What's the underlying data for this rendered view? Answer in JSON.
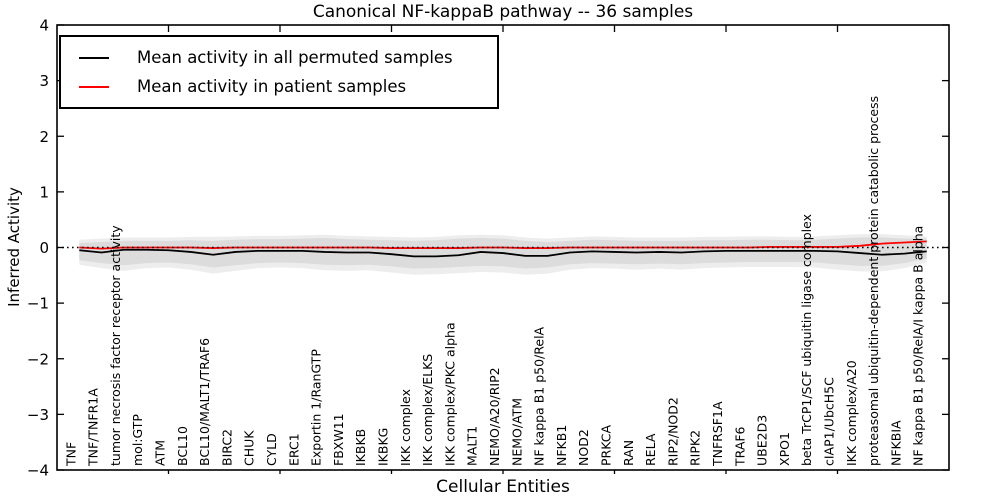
{
  "chart_data": {
    "type": "line",
    "title": "Canonical NF-kappaB pathway -- 36 samples",
    "xlabel": "Cellular Entities",
    "ylabel": "Inferred Activity",
    "ylim": [
      -4,
      4
    ],
    "xlim": [
      0,
      40
    ],
    "yticks": [
      4,
      3,
      2,
      1,
      0,
      -1,
      -2,
      -3,
      -4
    ],
    "ytick_labels": [
      "4",
      "3",
      "2",
      "1",
      "0",
      "−1",
      "−2",
      "−3",
      "−4"
    ],
    "xtick_units": [
      5,
      10,
      15,
      20,
      25,
      30,
      35
    ],
    "grid": false,
    "legend_position": "upper left",
    "categories": [
      "TNF",
      "TNF/TNFR1A",
      "tumor necrosis factor receptor activity",
      "mol:GTP",
      "ATM",
      "BCL10",
      "BCL10/MALT1/TRAF6",
      "BIRC2",
      "CHUK",
      "CYLD",
      "ERC1",
      "Exportin 1/RanGTP",
      "FBXW11",
      "IKBKB",
      "IKBKG",
      "IKK complex",
      "IKK complex/ELKS",
      "IKK complex/PKC alpha",
      "MALT1",
      "NEMO/A20/RIP2",
      "NEMO/ATM",
      "NF kappa B1 p50/RelA",
      "NFKB1",
      "NOD2",
      "PRKCA",
      "RAN",
      "RELA",
      "RIP2/NOD2",
      "RIPK2",
      "TNFRSF1A",
      "TRAF6",
      "UBE2D3",
      "XPO1",
      "beta TrCP1/SCF ubiquitin ligase complex",
      "cIAP1/UbcH5C",
      "IKK complex/A20",
      "proteasomal ubiquitin-dependent protein catabolic process",
      "NFKBIA",
      "NF kappa B1 p50/RelA/I kappa B alpha"
    ],
    "series": [
      {
        "name": "Mean activity in all permuted samples",
        "color": "#000000",
        "values": [
          -0.05,
          -0.09,
          -0.04,
          -0.04,
          -0.05,
          -0.08,
          -0.13,
          -0.08,
          -0.06,
          -0.06,
          -0.06,
          -0.08,
          -0.09,
          -0.09,
          -0.12,
          -0.16,
          -0.16,
          -0.14,
          -0.08,
          -0.1,
          -0.15,
          -0.15,
          -0.09,
          -0.07,
          -0.08,
          -0.09,
          -0.08,
          -0.09,
          -0.07,
          -0.06,
          -0.06,
          -0.06,
          -0.06,
          -0.06,
          -0.07,
          -0.1,
          -0.13,
          -0.11,
          -0.07
        ]
      },
      {
        "name": "Mean activity in patient samples",
        "color": "#ff0000",
        "values": [
          0.0,
          -0.02,
          0.0,
          0.0,
          0.0,
          0.0,
          -0.01,
          0.0,
          0.0,
          0.0,
          0.0,
          0.0,
          0.0,
          0.0,
          -0.01,
          -0.01,
          -0.01,
          -0.01,
          0.0,
          0.0,
          -0.01,
          -0.01,
          0.0,
          0.0,
          0.0,
          0.0,
          0.0,
          0.0,
          0.0,
          0.0,
          0.0,
          0.01,
          0.01,
          0.01,
          0.01,
          0.03,
          0.07,
          0.09,
          0.11
        ]
      }
    ],
    "band": {
      "description": "gray spread of permuted samples around zero",
      "inner_color": "#dcdcdc",
      "outer_color": "#ededed",
      "inner_upper": [
        0.08,
        0.1,
        0.12,
        0.12,
        0.12,
        0.13,
        0.12,
        0.14,
        0.15,
        0.15,
        0.16,
        0.17,
        0.15,
        0.14,
        0.13,
        0.12,
        0.13,
        0.16,
        0.17,
        0.16,
        0.12,
        0.1,
        0.12,
        0.14,
        0.13,
        0.12,
        0.12,
        0.12,
        0.13,
        0.13,
        0.14,
        0.14,
        0.13,
        0.14,
        0.16,
        0.18,
        0.18,
        0.16,
        0.16
      ],
      "inner_lower": [
        -0.23,
        -0.28,
        -0.32,
        -0.28,
        -0.27,
        -0.3,
        -0.36,
        -0.32,
        -0.28,
        -0.27,
        -0.28,
        -0.31,
        -0.32,
        -0.31,
        -0.34,
        -0.38,
        -0.37,
        -0.35,
        -0.33,
        -0.34,
        -0.38,
        -0.36,
        -0.3,
        -0.28,
        -0.29,
        -0.3,
        -0.29,
        -0.3,
        -0.28,
        -0.27,
        -0.26,
        -0.26,
        -0.26,
        -0.27,
        -0.3,
        -0.33,
        -0.33,
        -0.28,
        -0.2
      ],
      "outer_upper": [
        0.14,
        0.16,
        0.18,
        0.18,
        0.18,
        0.19,
        0.19,
        0.2,
        0.21,
        0.21,
        0.22,
        0.23,
        0.21,
        0.2,
        0.19,
        0.18,
        0.19,
        0.22,
        0.23,
        0.22,
        0.18,
        0.16,
        0.18,
        0.2,
        0.19,
        0.18,
        0.18,
        0.18,
        0.19,
        0.19,
        0.2,
        0.2,
        0.19,
        0.2,
        0.22,
        0.24,
        0.24,
        0.22,
        0.2
      ],
      "outer_lower": [
        -0.31,
        -0.37,
        -0.42,
        -0.37,
        -0.36,
        -0.4,
        -0.47,
        -0.42,
        -0.37,
        -0.36,
        -0.37,
        -0.41,
        -0.42,
        -0.41,
        -0.45,
        -0.49,
        -0.48,
        -0.46,
        -0.44,
        -0.45,
        -0.49,
        -0.47,
        -0.4,
        -0.37,
        -0.38,
        -0.4,
        -0.38,
        -0.4,
        -0.37,
        -0.36,
        -0.35,
        -0.35,
        -0.35,
        -0.36,
        -0.4,
        -0.43,
        -0.43,
        -0.37,
        -0.27
      ]
    },
    "zero_line": {
      "y": 0,
      "style": "dotted",
      "color": "#000000"
    }
  }
}
